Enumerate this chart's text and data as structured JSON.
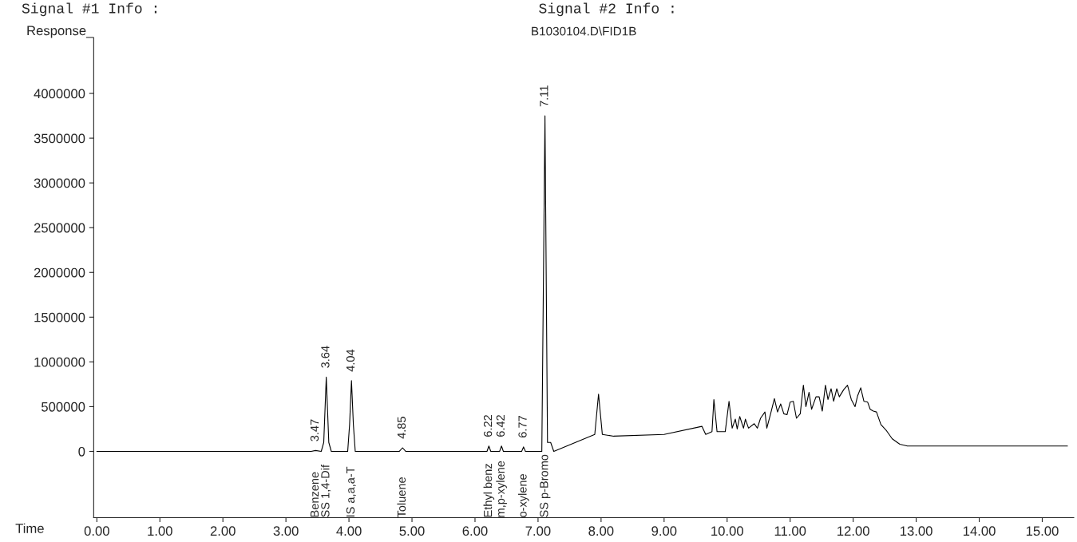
{
  "chart_data": {
    "type": "line",
    "title": "B1030104.D\\FID1B",
    "xlabel": "Time",
    "ylabel": "Response_",
    "annotations": [
      "Signal #1 Info :",
      "Signal #2 Info :",
      {
        "text": "3.47",
        "x": 3.47,
        "y": 10000
      },
      "Benzene",
      {
        "text": "3.64",
        "x": 3.64,
        "y": 830000
      },
      "SS 1,4-Dif",
      {
        "text": "4.04",
        "x": 4.04,
        "y": 790000
      },
      "IS a,a,a-T",
      {
        "text": "4.85",
        "x": 4.85,
        "y": 40000
      },
      "Toluene",
      {
        "text": "6.22",
        "x": 6.22,
        "y": 60000
      },
      "Ethyl benz",
      {
        "text": "6.42",
        "x": 6.42,
        "y": 60000
      },
      "m,p-xylene",
      {
        "text": "6.77",
        "x": 6.77,
        "y": 50000
      },
      "o-xylene",
      {
        "text": "7.11",
        "x": 7.11,
        "y": 3750000
      },
      "SS p-Bromo"
    ],
    "series": [
      {
        "color": "#000000",
        "x": [
          0,
          3.4,
          3.47,
          3.56,
          3.6,
          3.64,
          3.68,
          3.72,
          3.98,
          4.01,
          4.04,
          4.07,
          4.1,
          4.8,
          4.85,
          4.9,
          6.19,
          6.22,
          6.25,
          6.39,
          6.42,
          6.45,
          6.74,
          6.77,
          6.8,
          7.06,
          7.11,
          7.15,
          7.2,
          7.25,
          7.9,
          7.96,
          8.02,
          8.2,
          9.0,
          9.6,
          9.66,
          9.76,
          9.79,
          9.84,
          9.97,
          10.03,
          10.08,
          10.13,
          10.16,
          10.2,
          10.26,
          10.29,
          10.34,
          10.43,
          10.48,
          10.53,
          10.6,
          10.63,
          10.69,
          10.75,
          10.8,
          10.85,
          10.9,
          10.95,
          11.0,
          11.05,
          11.1,
          11.16,
          11.21,
          11.25,
          11.3,
          11.34,
          11.41,
          11.46,
          11.51,
          11.56,
          11.6,
          11.65,
          11.69,
          11.74,
          11.78,
          11.85,
          11.91,
          11.97,
          12.03,
          12.07,
          12.12,
          12.17,
          12.23,
          12.27,
          12.32,
          12.37,
          12.44,
          12.53,
          12.62,
          12.74,
          12.86,
          13.27,
          15.4
        ],
        "values": [
          0,
          0,
          10000,
          0,
          100000,
          830000,
          100000,
          0,
          0,
          300000,
          790000,
          300000,
          0,
          0,
          40000,
          0,
          0,
          60000,
          0,
          0,
          60000,
          0,
          0,
          50000,
          0,
          0,
          3750000,
          100000,
          100000,
          0,
          190000,
          640000,
          190000,
          170000,
          190000,
          280000,
          190000,
          220000,
          580000,
          220000,
          220000,
          560000,
          260000,
          360000,
          250000,
          390000,
          260000,
          360000,
          260000,
          310000,
          260000,
          370000,
          440000,
          260000,
          420000,
          590000,
          440000,
          530000,
          420000,
          410000,
          550000,
          560000,
          370000,
          420000,
          740000,
          500000,
          660000,
          470000,
          610000,
          610000,
          450000,
          740000,
          580000,
          700000,
          560000,
          700000,
          610000,
          690000,
          740000,
          580000,
          500000,
          620000,
          710000,
          560000,
          550000,
          470000,
          450000,
          440000,
          300000,
          230000,
          140000,
          80000,
          60000,
          60000,
          60000
        ]
      }
    ],
    "xlim": [
      -0.05,
      15.5
    ],
    "ylim": [
      -740000,
      4620000
    ],
    "xticks": [
      {
        "value": 0,
        "label": "0.00"
      },
      {
        "value": 1,
        "label": "1.00"
      },
      {
        "value": 2,
        "label": "2.00"
      },
      {
        "value": 3,
        "label": "3.00"
      },
      {
        "value": 4,
        "label": "4.00"
      },
      {
        "value": 5,
        "label": "5.00"
      },
      {
        "value": 6,
        "label": "6.00"
      },
      {
        "value": 7,
        "label": "7.00"
      },
      {
        "value": 8,
        "label": "8.00"
      },
      {
        "value": 9,
        "label": "9.00"
      },
      {
        "value": 10,
        "label": "10.00"
      },
      {
        "value": 11,
        "label": "11.00"
      },
      {
        "value": 12,
        "label": "12.00"
      },
      {
        "value": 13,
        "label": "13.00"
      },
      {
        "value": 14,
        "label": "14.00"
      },
      {
        "value": 15,
        "label": "15.00"
      }
    ],
    "yticks": [
      0,
      500000,
      1000000,
      1500000,
      2000000,
      2500000,
      3000000,
      3500000,
      4000000
    ],
    "grid": false,
    "legend": false,
    "marker": "none",
    "line_style": "solid"
  }
}
